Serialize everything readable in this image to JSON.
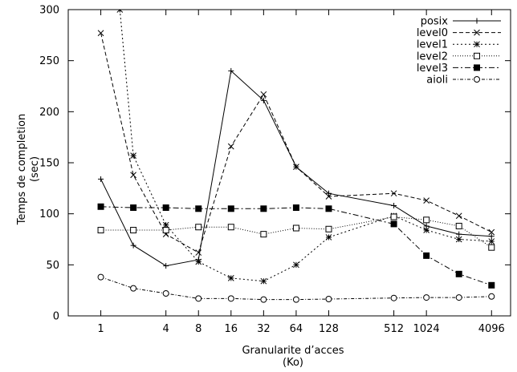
{
  "chart_data": {
    "type": "line",
    "title": "",
    "xlabel": [
      "Granularite d’acces",
      "(Ko)"
    ],
    "ylabel": [
      "Temps de completion",
      "(sec)"
    ],
    "x_scale": "log2",
    "xlim": [
      0.5,
      6144
    ],
    "ylim": [
      0,
      300
    ],
    "x_ticks": [
      1,
      4,
      8,
      16,
      32,
      64,
      128,
      512,
      1024,
      4096
    ],
    "x_tick_labels": [
      "1",
      "4",
      "8",
      "16",
      "32",
      "64",
      "128",
      "512",
      "1024",
      "4096"
    ],
    "y_ticks": [
      0,
      50,
      100,
      150,
      200,
      250,
      300
    ],
    "y_tick_labels": [
      "0",
      "50",
      "100",
      "150",
      "200",
      "250",
      "300"
    ],
    "legend_position": "top-right",
    "grid": false,
    "series": [
      {
        "name": "posix",
        "line_style": "solid",
        "marker": "plus",
        "x": [
          1,
          2,
          4,
          8,
          16,
          32,
          64,
          128,
          512,
          1024,
          2048,
          4096
        ],
        "y": [
          134,
          69,
          49,
          55,
          240,
          211,
          146,
          120,
          108,
          88,
          80,
          78
        ]
      },
      {
        "name": "level0",
        "line_style": "dashed",
        "marker": "x",
        "x": [
          1,
          2,
          4,
          8,
          16,
          32,
          64,
          128,
          512,
          1024,
          2048,
          4096
        ],
        "y": [
          277,
          138,
          80,
          62,
          166,
          217,
          146,
          117,
          120,
          113,
          98,
          82
        ]
      },
      {
        "name": "level1",
        "line_style": "dotted",
        "marker": "asterisk",
        "x": [
          1,
          1.5,
          2,
          4,
          8,
          16,
          32,
          64,
          128,
          512,
          1024,
          2048,
          4096
        ],
        "y": [
          320,
          300,
          157,
          89,
          53,
          37,
          34,
          50,
          77,
          98,
          84,
          75,
          73
        ]
      },
      {
        "name": "level2",
        "line_style": "dotted-fine",
        "marker": "open-square",
        "x": [
          1,
          2,
          4,
          8,
          16,
          32,
          64,
          128,
          512,
          1024,
          2048,
          4096
        ],
        "y": [
          84,
          84,
          84,
          87,
          87,
          80,
          86,
          85,
          97,
          94,
          88,
          67
        ]
      },
      {
        "name": "level3",
        "line_style": "dash-dot",
        "marker": "filled-square",
        "x": [
          1,
          2,
          4,
          8,
          16,
          32,
          64,
          128,
          512,
          1024,
          2048,
          4096
        ],
        "y": [
          107,
          106,
          106,
          105,
          105,
          105,
          106,
          105,
          90,
          59,
          41,
          30
        ]
      },
      {
        "name": "aioli",
        "line_style": "dash-dot-fine",
        "marker": "open-circle",
        "x": [
          1,
          2,
          4,
          8,
          16,
          32,
          64,
          128,
          512,
          1024,
          2048,
          4096
        ],
        "y": [
          38,
          27,
          22,
          17,
          17,
          16,
          16,
          16.5,
          17.5,
          18,
          18,
          19
        ]
      }
    ]
  }
}
